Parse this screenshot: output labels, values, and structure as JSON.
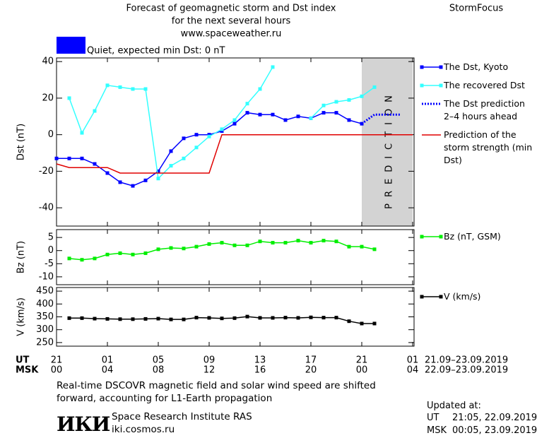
{
  "header": {
    "title_lines": [
      "Forecast of geomagnetic storm and Dst index",
      "for the next several hours",
      "www.spaceweather.ru"
    ],
    "brand": "StormFocus",
    "status": "Quiet, expected min Dst: 0 nT",
    "status_color": "#0000ff"
  },
  "chart_data": [
    {
      "type": "line",
      "ylabel": "Dst (nT)",
      "xlim": [
        0,
        28
      ],
      "ylim": [
        -50,
        42
      ],
      "yticks": [
        -40,
        -20,
        0,
        20,
        40
      ],
      "band": {
        "x": [
          24,
          28
        ],
        "label": "PREDICTION",
        "color": "#d3d3d3"
      },
      "series": [
        {
          "name": "The Dst, Kyoto",
          "color": "#0000ff",
          "style": "solid",
          "marker": true,
          "x": [
            0,
            1,
            2,
            3,
            4,
            5,
            6,
            7,
            8,
            9,
            10,
            11,
            12,
            13,
            14,
            15,
            16,
            17,
            18,
            19,
            20,
            21,
            22,
            23,
            24
          ],
          "values": [
            -13,
            -13,
            -13,
            -16,
            -21,
            -26,
            -28,
            -25,
            -20,
            -9,
            -2,
            0,
            0,
            2,
            6,
            12,
            11,
            11,
            8,
            10,
            9,
            12,
            12,
            8,
            6
          ]
        },
        {
          "name": "The recovered Dst",
          "color": "#33ffff",
          "style": "solid",
          "marker": true,
          "x": [
            1,
            2,
            3,
            4,
            5,
            6,
            7,
            8,
            9,
            10,
            11,
            12,
            13,
            14,
            15,
            16,
            17,
            18,
            19,
            20,
            21,
            22,
            23,
            24,
            25
          ],
          "values": [
            20,
            1,
            13,
            27,
            26,
            25,
            25,
            -24,
            -17,
            -13,
            -7,
            -1,
            3,
            8,
            17,
            25,
            37,
            null,
            null,
            9,
            16,
            18,
            19,
            21,
            26
          ]
        },
        {
          "name": "The Dst prediction 2–4 hours ahead",
          "color": "#0000ff",
          "style": "dotted",
          "marker": false,
          "x": [
            24,
            25,
            26,
            27
          ],
          "values": [
            6,
            11,
            11,
            11
          ]
        },
        {
          "name": "Prediction of the storm strength (min Dst)",
          "color": "#e00000",
          "style": "solid",
          "marker": false,
          "x": [
            0,
            1,
            4,
            5,
            12,
            13,
            28
          ],
          "values": [
            -16,
            -18,
            -18,
            -21,
            -21,
            0,
            0
          ]
        }
      ]
    },
    {
      "type": "line",
      "ylabel": "Bz (nT)",
      "xlim": [
        0,
        28
      ],
      "ylim": [
        -13,
        8
      ],
      "yticks": [
        -10,
        -5,
        0,
        5
      ],
      "series": [
        {
          "name": "Bz (nT, GSM)",
          "color": "#00ee00",
          "style": "solid",
          "marker": true,
          "x": [
            1,
            2,
            3,
            4,
            5,
            6,
            7,
            8,
            9,
            10,
            11,
            12,
            13,
            14,
            15,
            16,
            17,
            18,
            19,
            20,
            21,
            22,
            23,
            24,
            25
          ],
          "values": [
            -3,
            -3.5,
            -3,
            -1.5,
            -1,
            -1.5,
            -1,
            0.5,
            1,
            0.8,
            1.5,
            2.5,
            3,
            2,
            2,
            3.5,
            3,
            3,
            3.8,
            3,
            3.8,
            3.5,
            1.5,
            1.5,
            0.5
          ]
        }
      ]
    },
    {
      "type": "line",
      "ylabel": "V (km/s)",
      "xlim": [
        0,
        28
      ],
      "ylim": [
        236,
        464
      ],
      "yticks": [
        250,
        300,
        350,
        400,
        450
      ],
      "series": [
        {
          "name": "V (km/s)",
          "color": "#000000",
          "style": "solid",
          "marker": true,
          "x": [
            1,
            2,
            3,
            4,
            5,
            6,
            7,
            8,
            9,
            10,
            11,
            12,
            13,
            14,
            15,
            16,
            17,
            18,
            19,
            20,
            21,
            22,
            23,
            24,
            25
          ],
          "values": [
            345,
            345,
            343,
            342,
            341,
            341,
            342,
            343,
            340,
            340,
            347,
            346,
            344,
            345,
            351,
            346,
            346,
            347,
            346,
            348,
            347,
            347,
            333,
            324,
            324
          ]
        }
      ]
    }
  ],
  "time_axis": {
    "ut_label": "UT",
    "msk_label": "MSK",
    "ut_ticks": [
      {
        "value": 0,
        "label": "21"
      },
      {
        "value": 4,
        "label": "01"
      },
      {
        "value": 8,
        "label": "05"
      },
      {
        "value": 12,
        "label": "09"
      },
      {
        "value": 16,
        "label": "13"
      },
      {
        "value": 20,
        "label": "17"
      },
      {
        "value": 24,
        "label": "21"
      },
      {
        "value": 28,
        "label": "01"
      }
    ],
    "msk_ticks": [
      {
        "value": 0,
        "label": "00"
      },
      {
        "value": 4,
        "label": "04"
      },
      {
        "value": 8,
        "label": "08"
      },
      {
        "value": 12,
        "label": "12"
      },
      {
        "value": 16,
        "label": "16"
      },
      {
        "value": 20,
        "label": "20"
      },
      {
        "value": 24,
        "label": "00"
      },
      {
        "value": 28,
        "label": "04"
      }
    ],
    "ut_range": "21.09–23.09.2019",
    "msk_range": "22.09–23.09.2019"
  },
  "footer": {
    "note_lines": [
      "Real-time DSCOVR magnetic field and solar wind speed are shifted",
      "forward, accounting for L1-Earth propagation"
    ],
    "logo": "ИКИ",
    "institute": "Space Research Institute RAS",
    "site": "iki.cosmos.ru",
    "updated_label": "Updated at:",
    "updated": [
      {
        "label": "UT",
        "value": "21:05, 22.09.2019"
      },
      {
        "label": "MSK",
        "value": "00:05, 23.09.2019"
      }
    ]
  }
}
